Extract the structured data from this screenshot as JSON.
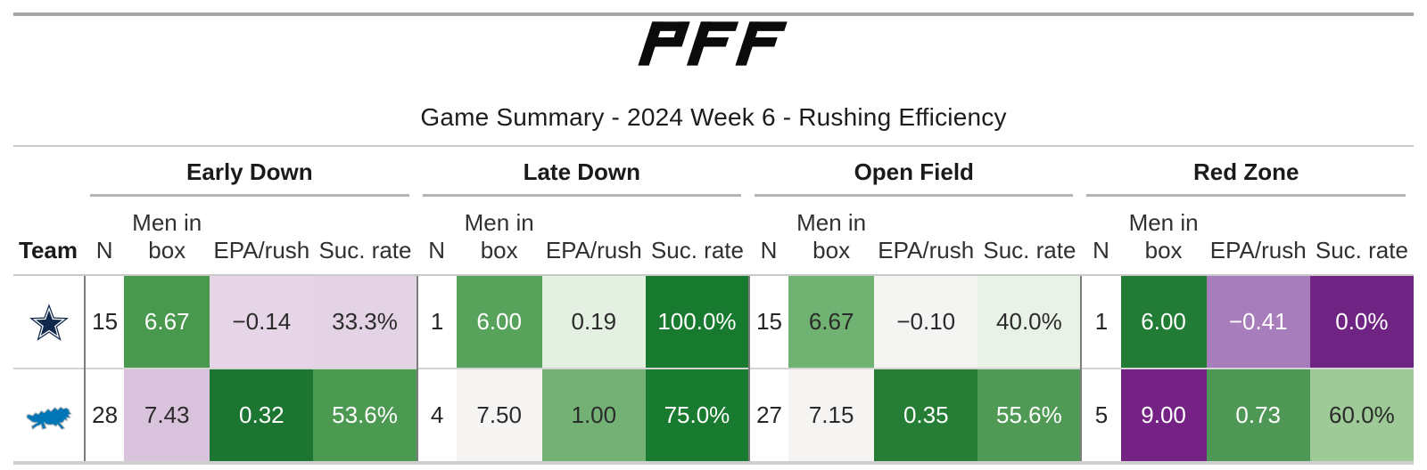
{
  "header": {
    "logo_text": "PFF",
    "title": "Game Summary - 2024 Week 6 - Rushing Efficiency"
  },
  "table": {
    "team_header": "Team",
    "sections": [
      "Early Down",
      "Late Down",
      "Open Field",
      "Red Zone"
    ],
    "col_headers": [
      "N",
      "Men in box",
      "EPA/rush",
      "Suc. rate"
    ],
    "rows": [
      {
        "team": "Dallas Cowboys",
        "logo": "cowboys",
        "cells": [
          {
            "n": "15",
            "box": {
              "v": "6.67",
              "bg": "#48984e",
              "fg": "#ffffff"
            },
            "epa": {
              "v": "−0.14",
              "bg": "#e6d5e7",
              "fg": "#2b2b2b"
            },
            "suc": {
              "v": "33.3%",
              "bg": "#e4d2e5",
              "fg": "#2b2b2b"
            }
          },
          {
            "n": "1",
            "box": {
              "v": "6.00",
              "bg": "#57a35c",
              "fg": "#ffffff"
            },
            "epa": {
              "v": "0.19",
              "bg": "#e4f0e2",
              "fg": "#2b2b2b"
            },
            "suc": {
              "v": "100.0%",
              "bg": "#187a2e",
              "fg": "#ffffff"
            }
          },
          {
            "n": "15",
            "box": {
              "v": "6.67",
              "bg": "#6fb271",
              "fg": "#2b2b2b"
            },
            "epa": {
              "v": "−0.10",
              "bg": "#f4f4f2",
              "fg": "#2b2b2b"
            },
            "suc": {
              "v": "40.0%",
              "bg": "#e9f2e6",
              "fg": "#2b2b2b"
            }
          },
          {
            "n": "1",
            "box": {
              "v": "6.00",
              "bg": "#227c35",
              "fg": "#ffffff"
            },
            "epa": {
              "v": "−0.41",
              "bg": "#a87dbb",
              "fg": "#ffffff"
            },
            "suc": {
              "v": "0.0%",
              "bg": "#6f2382",
              "fg": "#ffffff"
            }
          }
        ]
      },
      {
        "team": "Detroit Lions",
        "logo": "lions",
        "cells": [
          {
            "n": "28",
            "box": {
              "v": "7.43",
              "bg": "#d9c2dc",
              "fg": "#2b2b2b"
            },
            "epa": {
              "v": "0.32",
              "bg": "#1d7532",
              "fg": "#ffffff"
            },
            "suc": {
              "v": "53.6%",
              "bg": "#4c9952",
              "fg": "#ffffff"
            }
          },
          {
            "n": "4",
            "box": {
              "v": "7.50",
              "bg": "#f6f5f4",
              "fg": "#2b2b2b"
            },
            "epa": {
              "v": "1.00",
              "bg": "#74b175",
              "fg": "#2b2b2b"
            },
            "suc": {
              "v": "75.0%",
              "bg": "#197b2f",
              "fg": "#ffffff"
            }
          },
          {
            "n": "27",
            "box": {
              "v": "7.15",
              "bg": "#f5f4f2",
              "fg": "#2b2b2b"
            },
            "epa": {
              "v": "0.35",
              "bg": "#267e36",
              "fg": "#ffffff"
            },
            "suc": {
              "v": "55.6%",
              "bg": "#509a56",
              "fg": "#ffffff"
            }
          },
          {
            "n": "5",
            "box": {
              "v": "9.00",
              "bg": "#742385",
              "fg": "#ffffff"
            },
            "epa": {
              "v": "0.73",
              "bg": "#4f9754",
              "fg": "#ffffff"
            },
            "suc": {
              "v": "60.0%",
              "bg": "#9dca97",
              "fg": "#2b2b2b"
            }
          }
        ]
      }
    ]
  },
  "colors": {
    "good_extreme_green": "#187a2e",
    "bad_extreme_purple": "#6f2382",
    "cowboys_navy": "#10284b",
    "lions_blue": "#0076b6",
    "divider_gray": "#7d7d7d"
  },
  "chart_data": {
    "type": "table",
    "title": "Game Summary - 2024 Week 6 - Rushing Efficiency",
    "column_groups": [
      "Early Down",
      "Late Down",
      "Open Field",
      "Red Zone"
    ],
    "columns_per_group": [
      "N",
      "Men in box",
      "EPA/rush",
      "Suc. rate"
    ],
    "rows": [
      {
        "team": "Dallas Cowboys",
        "Early Down": {
          "N": 15,
          "Men in box": 6.67,
          "EPA/rush": -0.14,
          "Suc. rate_pct": 33.3
        },
        "Late Down": {
          "N": 1,
          "Men in box": 6.0,
          "EPA/rush": 0.19,
          "Suc. rate_pct": 100.0
        },
        "Open Field": {
          "N": 15,
          "Men in box": 6.67,
          "EPA/rush": -0.1,
          "Suc. rate_pct": 40.0
        },
        "Red Zone": {
          "N": 1,
          "Men in box": 6.0,
          "EPA/rush": -0.41,
          "Suc. rate_pct": 0.0
        }
      },
      {
        "team": "Detroit Lions",
        "Early Down": {
          "N": 28,
          "Men in box": 7.43,
          "EPA/rush": 0.32,
          "Suc. rate_pct": 53.6
        },
        "Late Down": {
          "N": 4,
          "Men in box": 7.5,
          "EPA/rush": 1.0,
          "Suc. rate_pct": 75.0
        },
        "Open Field": {
          "N": 27,
          "Men in box": 7.15,
          "EPA/rush": 0.35,
          "Suc. rate_pct": 55.6
        },
        "Red Zone": {
          "N": 5,
          "Men in box": 9.0,
          "EPA/rush": 0.73,
          "Suc. rate_pct": 60.0
        }
      }
    ],
    "layout": "heatmap-styled table, diverging color scale purple (poor) to green (good), scaled within each section/column"
  }
}
